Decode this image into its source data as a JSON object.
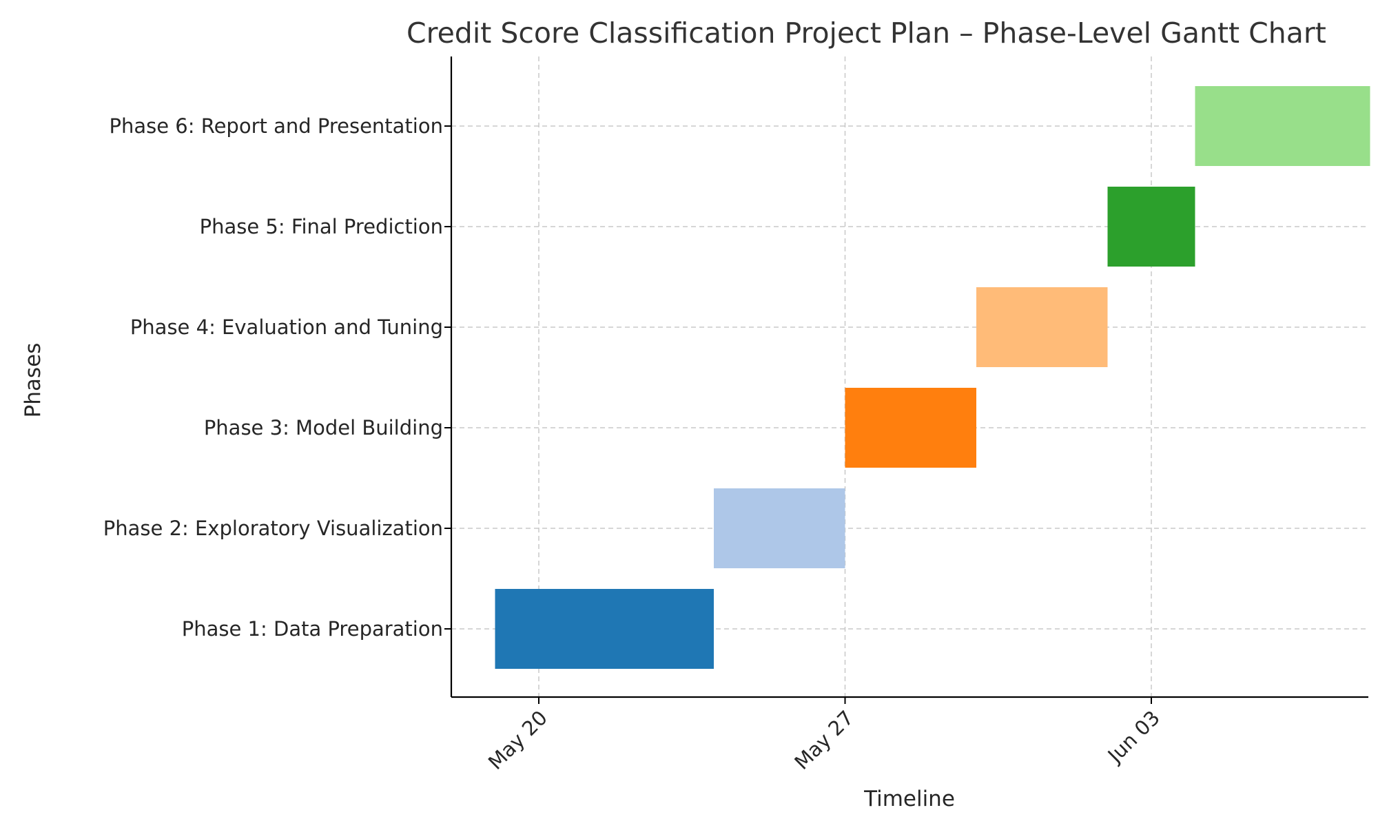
{
  "chart_data": {
    "type": "gantt",
    "title": "Credit Score Classification Project Plan – Phase-Level Gantt Chart",
    "xlabel": "Timeline",
    "ylabel": "Phases",
    "x_scale": "date",
    "xlim": [
      "2024-05-18",
      "2024-06-08"
    ],
    "x_ticks": [
      {
        "date": "2024-05-20",
        "label": "May 20"
      },
      {
        "date": "2024-05-27",
        "label": "May 27"
      },
      {
        "date": "2024-06-03",
        "label": "Jun 03"
      }
    ],
    "grid": true,
    "tasks": [
      {
        "name": "Phase 1: Data Preparation",
        "start": "2024-05-19",
        "end": "2024-05-24",
        "color": "#1f77b4"
      },
      {
        "name": "Phase 2: Exploratory Visualization",
        "start": "2024-05-24",
        "end": "2024-05-27",
        "color": "#aec7e8"
      },
      {
        "name": "Phase 3: Model Building",
        "start": "2024-05-27",
        "end": "2024-05-30",
        "color": "#ff7f0e"
      },
      {
        "name": "Phase 4: Evaluation and Tuning",
        "start": "2024-05-30",
        "end": "2024-06-02",
        "color": "#ffbb78"
      },
      {
        "name": "Phase 5: Final Prediction",
        "start": "2024-06-02",
        "end": "2024-06-04",
        "color": "#2ca02c"
      },
      {
        "name": "Phase 6: Report and Presentation",
        "start": "2024-06-04",
        "end": "2024-06-08",
        "color": "#98df8a"
      }
    ]
  }
}
